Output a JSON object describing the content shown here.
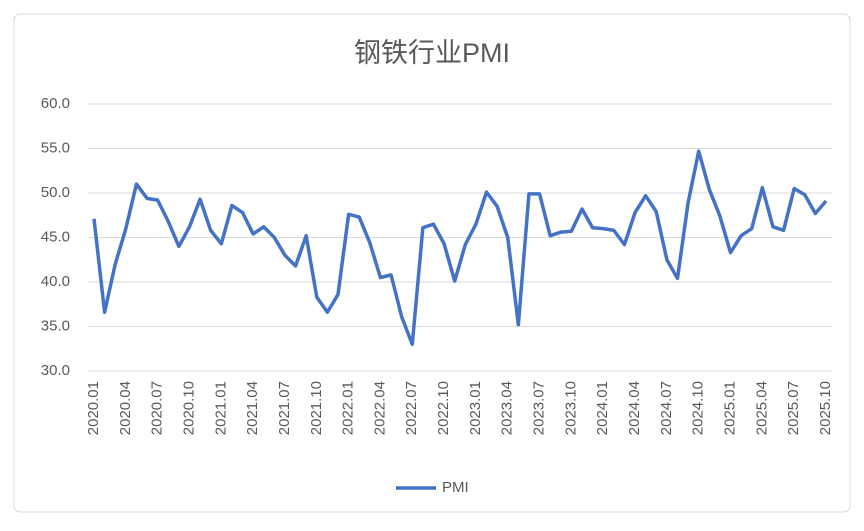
{
  "chart_data": {
    "type": "line",
    "title": "钢铁行业PMI",
    "categories": [
      "2020.01",
      null,
      null,
      "2020.04",
      null,
      null,
      "2020.07",
      null,
      null,
      "2020.10",
      null,
      null,
      "2021.01",
      null,
      null,
      "2021.04",
      null,
      null,
      "2021.07",
      null,
      null,
      "2021.10",
      null,
      null,
      "2022.01",
      null,
      null,
      "2022.04",
      null,
      null,
      "2022.07",
      null,
      null,
      "2022.10",
      null,
      null,
      "2023.01",
      null,
      null,
      "2023.04",
      null,
      null,
      "2023.07",
      null,
      null,
      "2023.10",
      null,
      null,
      "2024.01",
      null,
      null,
      "2024.04",
      null,
      null,
      "2024.07",
      null,
      null,
      "2024.10",
      null,
      null,
      "2025.01",
      null,
      null,
      "2025.04",
      null,
      null,
      "2025.07",
      null,
      null,
      "2025.10"
    ],
    "series": [
      {
        "name": "PMI",
        "color": "#4472c4",
        "values": [
          47.1,
          36.6,
          42.0,
          46.0,
          51.0,
          49.4,
          49.2,
          46.8,
          44.0,
          46.2,
          49.3,
          45.8,
          44.3,
          48.6,
          47.8,
          45.4,
          46.2,
          45.0,
          43.0,
          41.8,
          45.2,
          38.3,
          36.6,
          38.6,
          47.6,
          47.3,
          44.4,
          40.5,
          40.8,
          36.1,
          33.0,
          46.1,
          46.5,
          44.3,
          40.1,
          44.2,
          46.5,
          50.1,
          48.5,
          45.0,
          35.2,
          49.9,
          49.9,
          45.2,
          45.6,
          45.7,
          48.2,
          46.1,
          46.0,
          45.8,
          44.2,
          47.8,
          49.7,
          47.9,
          42.5,
          40.4,
          48.9,
          54.7,
          50.4,
          47.4,
          43.3,
          45.2,
          46.0,
          50.6,
          46.2,
          45.8,
          50.5,
          49.8,
          47.7,
          49.1
        ]
      }
    ],
    "ylim": [
      30,
      60
    ],
    "yticks": [
      {
        "value": 30,
        "label": "30.0"
      },
      {
        "value": 35,
        "label": "35.0"
      },
      {
        "value": 40,
        "label": "40.0"
      },
      {
        "value": 45,
        "label": "45.0"
      },
      {
        "value": 50,
        "label": "50.0"
      },
      {
        "value": 55,
        "label": "55.0"
      },
      {
        "value": 60,
        "label": "60.0"
      }
    ],
    "grid": true,
    "legend": "bottom"
  }
}
